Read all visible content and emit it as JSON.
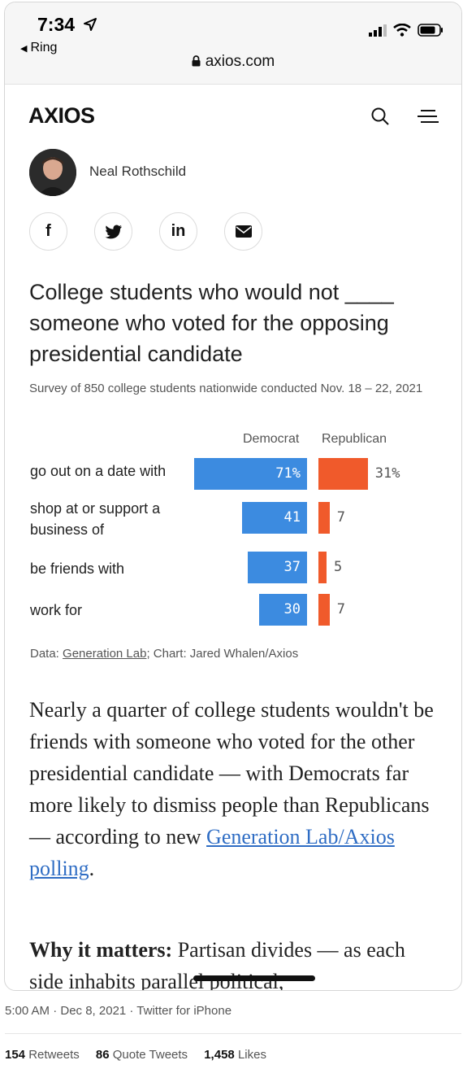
{
  "status_bar": {
    "time": "7:34",
    "back_app": "Ring",
    "url": "axios.com"
  },
  "header": {
    "logo": "AXIOS",
    "search_icon": "search-icon",
    "menu_icon": "menu-icon"
  },
  "byline": {
    "author": "Neal Rothschild"
  },
  "share": {
    "facebook": "f",
    "linkedin": "in"
  },
  "chart_data": {
    "type": "bar",
    "title": "College students who would not ____ someone who voted for the opposing presidential candidate",
    "subtitle": "Survey of 850 college students nationwide conducted Nov. 18 – 22, 2021",
    "categories": [
      "go out on a date with",
      "shop at or support a business of",
      "be friends with",
      "work for"
    ],
    "series": [
      {
        "name": "Democrat",
        "values": [
          71,
          41,
          37,
          30
        ],
        "labels": [
          "71%",
          "41",
          "37",
          "30"
        ],
        "color": "#3c8be0"
      },
      {
        "name": "Republican",
        "values": [
          31,
          7,
          5,
          7
        ],
        "labels": [
          "31%",
          "7",
          "5",
          "7"
        ],
        "color": "#f05a2b"
      }
    ],
    "source_prefix": "Data: ",
    "source_link": "Generation Lab",
    "source_suffix": "; Chart: Jared Whalen/Axios"
  },
  "article": {
    "p1_text": "Nearly a quarter of college students wouldn't be friends with someone who voted for the other presidential candidate — with Democrats far more likely to dismiss people than Republicans — according to new ",
    "p1_link": "Generation Lab/Axios polling",
    "p1_end": ".",
    "p2_bold": "Why it matters:",
    "p2_text": " Partisan divides — as each side inhabits parallel political,"
  },
  "tweet": {
    "meta": "5:00 AM · Dec 8, 2021 · Twitter for iPhone",
    "retweets_count": "154",
    "retweets_label": "Retweets",
    "quotes_count": "86",
    "quotes_label": "Quote Tweets",
    "likes_count": "1,458",
    "likes_label": "Likes"
  }
}
